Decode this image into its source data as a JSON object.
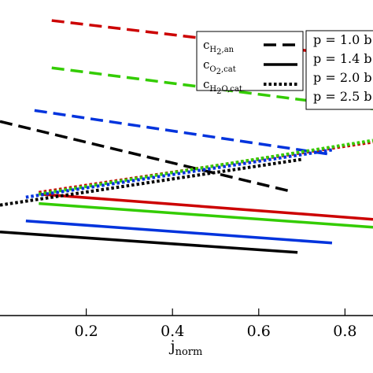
{
  "chart_data": {
    "type": "line",
    "xlabel": {
      "main": "j",
      "sub": "norm"
    },
    "x_ticks": [
      "0.2",
      "0.4",
      "0.6",
      "0.8"
    ],
    "x_tick_values": [
      0.2,
      0.4,
      0.6,
      0.8
    ],
    "xlim": [
      0.0,
      0.865
    ],
    "ylim": [
      0.0,
      1.0
    ],
    "grid": false,
    "style_legend": {
      "placement": "top-center",
      "entries": [
        {
          "main": "c",
          "sub": "H",
          "sub2": "2",
          "sub3": ",an",
          "style": "dashed"
        },
        {
          "main": "c",
          "sub": "O",
          "sub2": "2",
          "sub3": ",cat",
          "style": "solid"
        },
        {
          "main": "c",
          "sub": "H",
          "sub2": "2",
          "sub3": "O,cat",
          "style": "dotted"
        }
      ]
    },
    "pressure_legend": {
      "placement": "top-right",
      "entries": [
        "p = 1.0 b",
        "p = 1.4 b",
        "p = 2.0 b",
        "p = 2.5 b"
      ]
    },
    "colors": {
      "black": "#000000",
      "red": "#cc0000",
      "green": "#33cc00",
      "blue": "#0033dd"
    },
    "series": [
      {
        "color": "black",
        "style": "dashed",
        "x": [
          0.0,
          0.67
        ],
        "y": [
          0.615,
          0.395
        ]
      },
      {
        "color": "red",
        "style": "dashed",
        "x": [
          0.12,
          0.865
        ],
        "y": [
          0.935,
          0.815
        ]
      },
      {
        "color": "green",
        "style": "dashed",
        "x": [
          0.12,
          0.865
        ],
        "y": [
          0.785,
          0.655
        ]
      },
      {
        "color": "blue",
        "style": "dashed",
        "x": [
          0.08,
          0.77
        ],
        "y": [
          0.65,
          0.51
        ]
      },
      {
        "color": "black",
        "style": "solid",
        "x": [
          0.0,
          0.69
        ],
        "y": [
          0.265,
          0.2
        ]
      },
      {
        "color": "red",
        "style": "solid",
        "x": [
          0.09,
          0.865
        ],
        "y": [
          0.385,
          0.305
        ]
      },
      {
        "color": "green",
        "style": "solid",
        "x": [
          0.09,
          0.865
        ],
        "y": [
          0.355,
          0.28
        ]
      },
      {
        "color": "blue",
        "style": "solid",
        "x": [
          0.06,
          0.77
        ],
        "y": [
          0.3,
          0.23
        ]
      },
      {
        "color": "black",
        "style": "dotted",
        "x": [
          0.0,
          0.7
        ],
        "y": [
          0.35,
          0.495
        ]
      },
      {
        "color": "red",
        "style": "dotted",
        "x": [
          0.09,
          0.865
        ],
        "y": [
          0.39,
          0.55
        ]
      },
      {
        "color": "green",
        "style": "dotted",
        "x": [
          0.09,
          0.865
        ],
        "y": [
          0.385,
          0.555
        ]
      },
      {
        "color": "blue",
        "style": "dotted",
        "x": [
          0.06,
          0.77
        ],
        "y": [
          0.375,
          0.525
        ]
      }
    ]
  }
}
